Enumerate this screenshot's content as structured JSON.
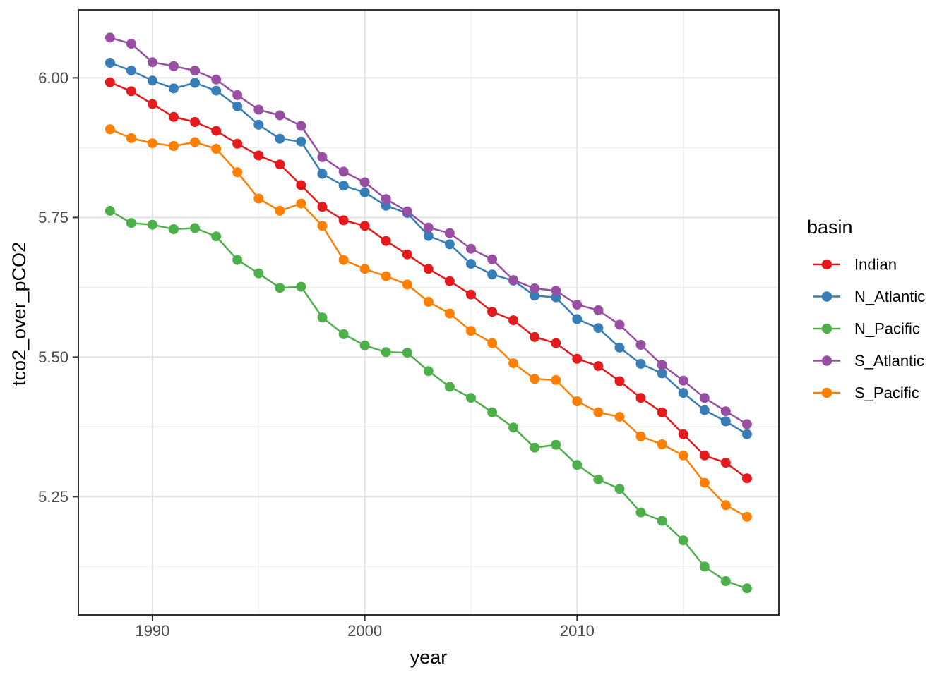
{
  "figure": {
    "background": "#ffffff",
    "panel_background": "#ffffff",
    "panel_border_color": "#333333",
    "grid_major_color": "#e3e3e3",
    "grid_minor_color": "#f0f0f0",
    "tick_color": "#333333",
    "tick_label_color": "#4d4d4d",
    "axis_title_color": "#000000"
  },
  "chart_data": {
    "type": "line",
    "title": "",
    "xlabel": "year",
    "ylabel": "tco2_over_pCO2",
    "legend_title": "basin",
    "legend_position": "right",
    "grid": true,
    "xlim": [
      1986.51,
      2019.5
    ],
    "ylim": [
      5.0384,
      6.1217
    ],
    "x_ticks": [
      1990,
      2000,
      2010
    ],
    "x_tick_labels": [
      "1990",
      "2000",
      "2010"
    ],
    "x_minor_ticks": [
      1995,
      2005,
      2015
    ],
    "y_ticks": [
      5.25,
      5.5,
      5.75,
      6.0
    ],
    "y_tick_labels": [
      "5.25",
      "5.50",
      "5.75",
      "6.00"
    ],
    "y_minor_ticks": [
      5.125,
      5.375,
      5.625,
      5.875
    ],
    "x": [
      1988,
      1989,
      1990,
      1991,
      1992,
      1993,
      1994,
      1995,
      1996,
      1997,
      1998,
      1999,
      2000,
      2001,
      2002,
      2003,
      2004,
      2005,
      2006,
      2007,
      2008,
      2009,
      2010,
      2011,
      2012,
      2013,
      2014,
      2015,
      2016,
      2017,
      2018
    ],
    "series": [
      {
        "name": "Indian",
        "color": "#e41a1c",
        "values": [
          5.992,
          5.976,
          5.953,
          5.93,
          5.921,
          5.905,
          5.882,
          5.861,
          5.845,
          5.808,
          5.769,
          5.745,
          5.735,
          5.708,
          5.684,
          5.658,
          5.636,
          5.612,
          5.581,
          5.566,
          5.536,
          5.525,
          5.497,
          5.484,
          5.457,
          5.427,
          5.401,
          5.362,
          5.324,
          5.311,
          5.283
        ]
      },
      {
        "name": "N_Atlantic",
        "color": "#377eb8",
        "values": [
          6.027,
          6.013,
          5.995,
          5.981,
          5.991,
          5.977,
          5.949,
          5.916,
          5.891,
          5.886,
          5.828,
          5.807,
          5.795,
          5.771,
          5.758,
          5.717,
          5.702,
          5.667,
          5.648,
          5.637,
          5.61,
          5.607,
          5.568,
          5.552,
          5.517,
          5.488,
          5.471,
          5.436,
          5.405,
          5.385,
          5.362
        ]
      },
      {
        "name": "N_Pacific",
        "color": "#4daf4a",
        "values": [
          5.762,
          5.74,
          5.737,
          5.729,
          5.731,
          5.716,
          5.674,
          5.65,
          5.624,
          5.626,
          5.571,
          5.541,
          5.521,
          5.509,
          5.508,
          5.475,
          5.447,
          5.427,
          5.401,
          5.374,
          5.338,
          5.343,
          5.307,
          5.281,
          5.264,
          5.222,
          5.207,
          5.172,
          5.125,
          5.099,
          5.086
        ]
      },
      {
        "name": "S_Atlantic",
        "color": "#984ea3",
        "values": [
          6.072,
          6.061,
          6.028,
          6.021,
          6.013,
          5.997,
          5.969,
          5.943,
          5.933,
          5.914,
          5.858,
          5.832,
          5.813,
          5.783,
          5.761,
          5.732,
          5.722,
          5.694,
          5.675,
          5.638,
          5.623,
          5.619,
          5.594,
          5.584,
          5.558,
          5.522,
          5.486,
          5.458,
          5.427,
          5.403,
          5.38
        ]
      },
      {
        "name": "S_Pacific",
        "color": "#ff7f00",
        "values": [
          5.908,
          5.892,
          5.883,
          5.878,
          5.885,
          5.873,
          5.831,
          5.784,
          5.762,
          5.775,
          5.735,
          5.674,
          5.658,
          5.645,
          5.63,
          5.599,
          5.578,
          5.547,
          5.525,
          5.489,
          5.461,
          5.459,
          5.421,
          5.401,
          5.393,
          5.358,
          5.344,
          5.324,
          5.275,
          5.235,
          5.214
        ]
      }
    ]
  }
}
